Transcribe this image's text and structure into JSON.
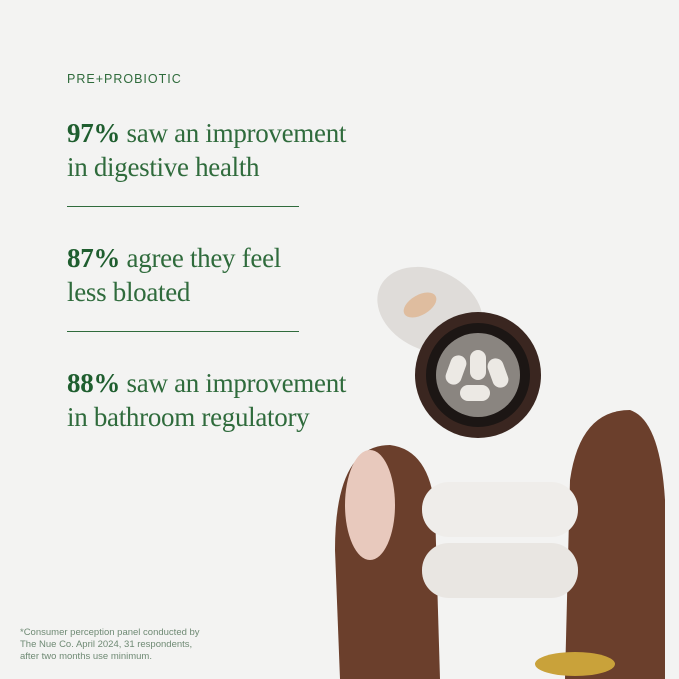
{
  "eyebrow": "PRE+PROBIOTIC",
  "stats": [
    {
      "value": "97%",
      "text_line1": " saw an improvement",
      "text_line2": "in digestive health"
    },
    {
      "value": "87%",
      "text_line1": " agree they feel",
      "text_line2": "less bloated"
    },
    {
      "value": "88%",
      "text_line1": " saw an improvement",
      "text_line2": "in bathroom regulatory"
    }
  ],
  "footnote": [
    "*Consumer perception panel conducted by",
    "The Nue Co. April 2024, 31 respondents,",
    "after two months use minimum."
  ],
  "colors": {
    "accent": "#2f6b3c",
    "background": "#f3f3f2"
  }
}
